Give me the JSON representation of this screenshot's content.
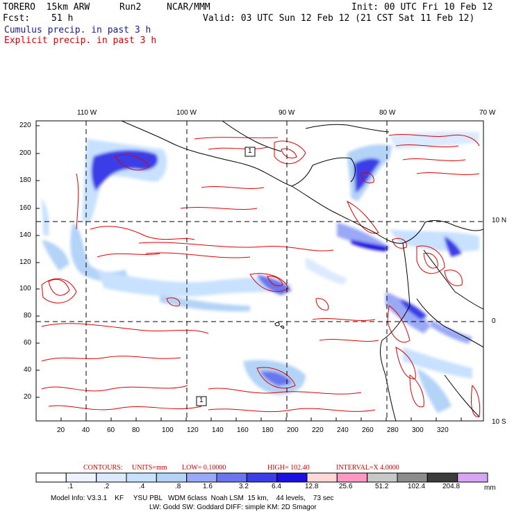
{
  "header": {
    "model": "TORERO  15km ARW",
    "run": "Run2",
    "org": "NCAR/MMM",
    "init": "Init: 00 UTC Fri 10 Feb 12",
    "fcst_label": "Fcst:",
    "fcst_value": "51 h",
    "valid": "Valid: 03 UTC Sun 12 Feb 12 (21 CST Sat 11 Feb 12)",
    "cumulus": "Cumulus precip. in past 3 h",
    "explicit": "Explicit precip. in past 3 h"
  },
  "map": {
    "top_lon_labels": [
      "110 W",
      "100 W",
      "90 W",
      "80 W",
      "70 W"
    ],
    "right_lat_labels": [
      "10 N",
      "0",
      "10 S"
    ],
    "left_ticks": [
      "220",
      "200",
      "180",
      "160",
      "140",
      "120",
      "100",
      "80",
      "60",
      "40",
      "20"
    ],
    "bottom_ticks": [
      "20",
      "40",
      "60",
      "80",
      "100",
      "120",
      "140",
      "160",
      "180",
      "200",
      "220",
      "240",
      "260",
      "280",
      "300",
      "320"
    ],
    "low_markers": [
      "1",
      "1"
    ],
    "colors": {
      "land_line": "#000000",
      "contour": "#e00000",
      "grid": "#000000"
    }
  },
  "contours": {
    "label": "CONTOURS:",
    "units": "UNITS=mm",
    "low": "LOW= 0.10000",
    "high": "HIGH= 102.40",
    "interval": "INTERVAL=X 4.0000"
  },
  "colorbar": {
    "labels": [
      ".1",
      ".2",
      ".4",
      ".8",
      "1.6",
      "3.2",
      "6.4",
      "12.8",
      "25.6",
      "51.2",
      "102.4",
      "204.8"
    ],
    "unit": "mm",
    "colors": [
      "#ffffff",
      "#eef4ff",
      "#dceaff",
      "#c7e1ff",
      "#b3d3f7",
      "#9aa9f5",
      "#6b76ee",
      "#3a3ee6",
      "#1a10e0",
      "#ffd8d8",
      "#ff99c4",
      "#c8c8c8",
      "#8c8c8c",
      "#3c3c3c",
      "#d6a6f5"
    ]
  },
  "footer": {
    "line1": "Model Info: V3.3.1    KF     YSU PBL   WDM 6class  Noah LSM  15 km,    44 levels,    73 sec",
    "line2": "LW: Godd SW: Goddard DIFF: simple KM: 2D Smagor"
  }
}
